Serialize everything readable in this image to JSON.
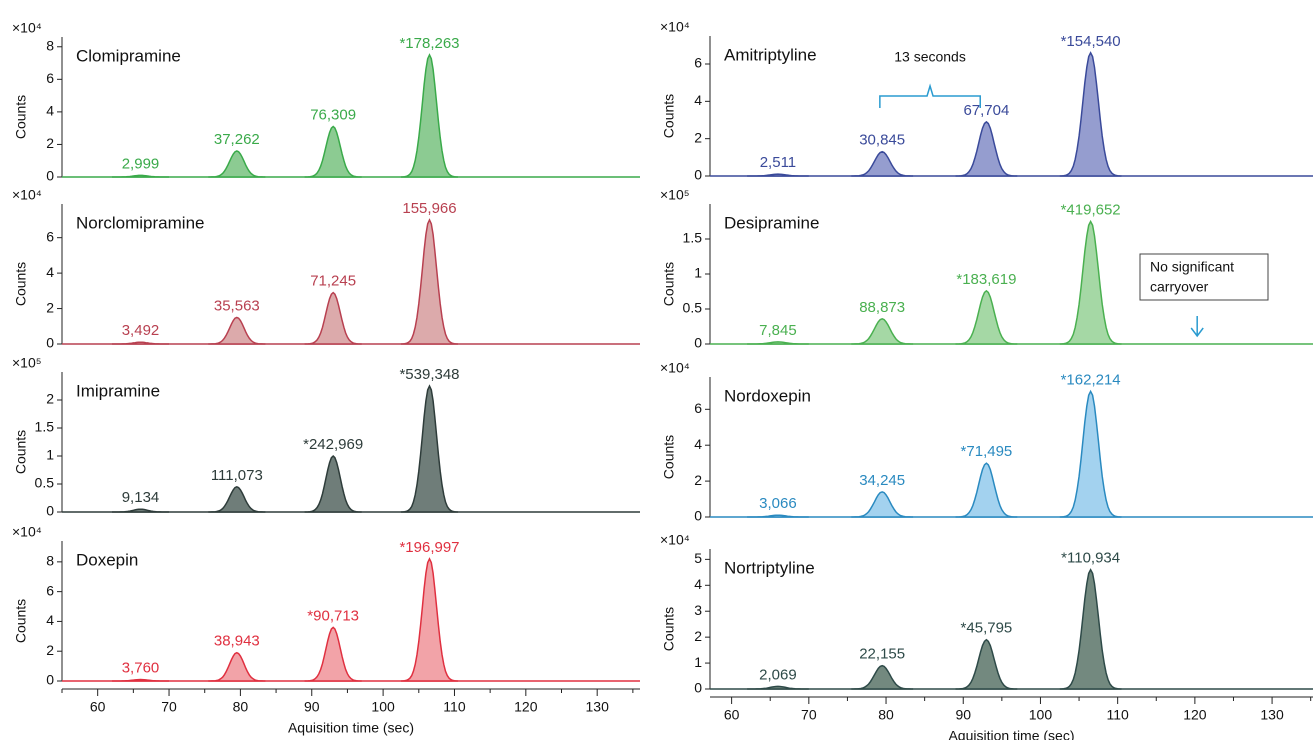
{
  "chart_data": [
    {
      "type": "area",
      "title": "Clomipramine",
      "ylabel": "Counts",
      "multiplier": "×10⁴",
      "color": "#3aaa4a",
      "fill": "#8ccb92",
      "x": [
        66,
        79.5,
        93,
        106.5
      ],
      "values": [
        0.1,
        1.6,
        3.1,
        7.5
      ],
      "labels": [
        "2,999",
        "37,262",
        "76,309",
        "*178,263"
      ],
      "xlim": [
        55,
        136
      ],
      "ylim": [
        0,
        8.6
      ],
      "yticks": [
        0,
        2,
        4,
        6,
        8
      ]
    },
    {
      "type": "area",
      "title": "Norclomipramine",
      "ylabel": "Counts",
      "multiplier": "×10⁴",
      "color": "#b84050",
      "fill": "#dcaaab",
      "x": [
        66,
        79.5,
        93,
        106.5
      ],
      "values": [
        0.1,
        1.5,
        2.9,
        7.0
      ],
      "labels": [
        "3,492",
        "35,563",
        "71,245",
        "155,966"
      ],
      "xlim": [
        55,
        136
      ],
      "ylim": [
        0,
        7.9
      ],
      "yticks": [
        0,
        2,
        4,
        6
      ]
    },
    {
      "type": "area",
      "title": "Imipramine",
      "ylabel": "Counts",
      "multiplier": "×10⁵",
      "color": "#2e3c3a",
      "fill": "#6f7d79",
      "x": [
        66,
        79.5,
        93,
        106.5
      ],
      "values": [
        0.05,
        0.45,
        1.0,
        2.25
      ],
      "labels": [
        "9,134",
        "111,073",
        "*242,969",
        "*539,348"
      ],
      "xlim": [
        55,
        136
      ],
      "ylim": [
        0,
        2.5
      ],
      "yticks": [
        0,
        0.5,
        1,
        1.5,
        2
      ]
    },
    {
      "type": "area",
      "title": "Doxepin",
      "ylabel": "Counts",
      "multiplier": "×10⁴",
      "color": "#e03040",
      "fill": "#f2a3a8",
      "x": [
        66,
        79.5,
        93,
        106.5
      ],
      "values": [
        0.1,
        1.9,
        3.6,
        8.2
      ],
      "labels": [
        "3,760",
        "38,943",
        "*90,713",
        "*196,997"
      ],
      "xlim": [
        55,
        136
      ],
      "ylim": [
        0,
        9.4
      ],
      "yticks": [
        0,
        2,
        4,
        6,
        8
      ],
      "xticks": [
        60,
        70,
        80,
        90,
        100,
        110,
        120,
        130
      ],
      "xlabel": "Aquisition time (sec)"
    },
    {
      "type": "area",
      "title": "Amitriptyline",
      "ylabel": "Counts",
      "multiplier": "×10⁴",
      "color": "#3a4a9a",
      "fill": "#959dcf",
      "x": [
        66,
        79.5,
        93,
        106.5
      ],
      "values": [
        0.1,
        1.3,
        2.9,
        6.6
      ],
      "labels": [
        "2,511",
        "30,845",
        "67,704",
        "*154,540"
      ],
      "xlim": [
        57.2,
        135.3
      ],
      "ylim": [
        0,
        7.5
      ],
      "yticks": [
        0,
        2,
        4,
        6
      ],
      "annotations": [
        "13 seconds"
      ]
    },
    {
      "type": "area",
      "title": "Desipramine",
      "ylabel": "Counts",
      "multiplier": "×10⁵",
      "color": "#4ab050",
      "fill": "#a5d8a5",
      "x": [
        66,
        79.5,
        93,
        106.5
      ],
      "values": [
        0.03,
        0.36,
        0.76,
        1.75
      ],
      "labels": [
        "7,845",
        "88,873",
        "*183,619",
        "*419,652"
      ],
      "xlim": [
        57.2,
        135.3
      ],
      "ylim": [
        0,
        2.0
      ],
      "yticks": [
        0,
        0.5,
        1,
        1.5
      ],
      "annotations": [
        "No significant",
        "carryover"
      ]
    },
    {
      "type": "area",
      "title": "Nordoxepin",
      "ylabel": "Counts",
      "multiplier": "×10⁴",
      "color": "#2a8ac0",
      "fill": "#a3d2ef",
      "x": [
        66,
        79.5,
        93,
        106.5
      ],
      "values": [
        0.1,
        1.4,
        3.0,
        7.0
      ],
      "labels": [
        "3,066",
        "34,245",
        "*71,495",
        "*162,214"
      ],
      "xlim": [
        57.2,
        135.3
      ],
      "ylim": [
        0,
        7.8
      ],
      "yticks": [
        0,
        2,
        4,
        6
      ]
    },
    {
      "type": "area",
      "title": "Nortriptyline",
      "ylabel": "Counts",
      "multiplier": "×10⁴",
      "color": "#2e4a48",
      "fill": "#73897f",
      "x": [
        66,
        79.5,
        93,
        106.5
      ],
      "values": [
        0.1,
        0.9,
        1.9,
        4.6
      ],
      "labels": [
        "2,069",
        "22,155",
        "*45,795",
        "*110,934"
      ],
      "xlim": [
        57.2,
        135.3
      ],
      "ylim": [
        0,
        5.4
      ],
      "yticks": [
        0,
        1,
        2,
        3,
        4,
        5
      ],
      "xticks": [
        60,
        70,
        80,
        90,
        100,
        110,
        120,
        130
      ],
      "xlabel": "Aquisition time (sec)"
    }
  ]
}
